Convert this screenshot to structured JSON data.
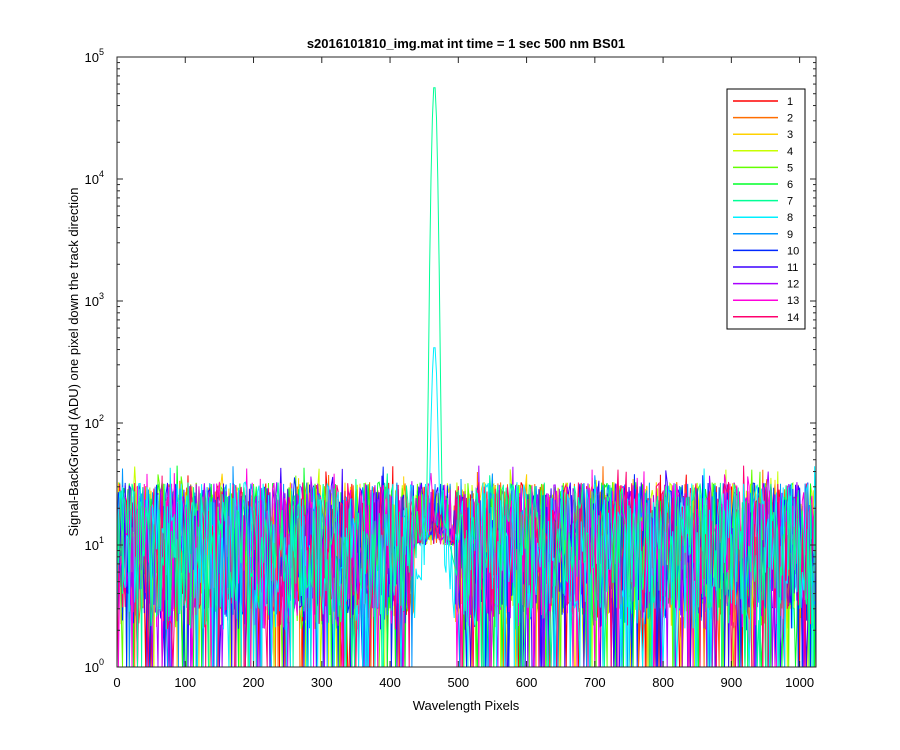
{
  "chart_data": {
    "type": "line",
    "title": "s2016101810_img.mat int time = 1 sec  500 nm BS01",
    "xlabel": "Wavelength Pixels",
    "ylabel": "Signal-BackGround (ADU) one pixel down the track direction",
    "xlim": [
      0,
      1024
    ],
    "ylim": [
      1,
      100000
    ],
    "yscale": "log",
    "grid": false,
    "legend_position": "top-right",
    "x_ticks": [
      0,
      100,
      200,
      300,
      400,
      500,
      600,
      700,
      800,
      900,
      1000
    ],
    "y_ticks": [
      {
        "value": 1,
        "base": "10",
        "exp": "0"
      },
      {
        "value": 10,
        "base": "10",
        "exp": "1"
      },
      {
        "value": 100,
        "base": "10",
        "exp": "2"
      },
      {
        "value": 1000,
        "base": "10",
        "exp": "3"
      },
      {
        "value": 10000,
        "base": "10",
        "exp": "4"
      },
      {
        "value": 100000,
        "base": "10",
        "exp": "5"
      }
    ],
    "noise_range": [
      1,
      48
    ],
    "peak": {
      "x": 465,
      "series": "7",
      "value": 60000,
      "secondary_series": "8",
      "secondary_value": 420
    },
    "series": [
      {
        "name": "1",
        "color": "#ff0000"
      },
      {
        "name": "2",
        "color": "#ff6e00"
      },
      {
        "name": "3",
        "color": "#ffd200"
      },
      {
        "name": "4",
        "color": "#c8ff00"
      },
      {
        "name": "5",
        "color": "#64ff00"
      },
      {
        "name": "6",
        "color": "#00ff28"
      },
      {
        "name": "7",
        "color": "#00ff96"
      },
      {
        "name": "8",
        "color": "#00f0ff"
      },
      {
        "name": "9",
        "color": "#0096ff"
      },
      {
        "name": "10",
        "color": "#0028ff"
      },
      {
        "name": "11",
        "color": "#3c00ff"
      },
      {
        "name": "12",
        "color": "#aa00ff"
      },
      {
        "name": "13",
        "color": "#ff00dc"
      },
      {
        "name": "14",
        "color": "#ff006e"
      }
    ]
  }
}
